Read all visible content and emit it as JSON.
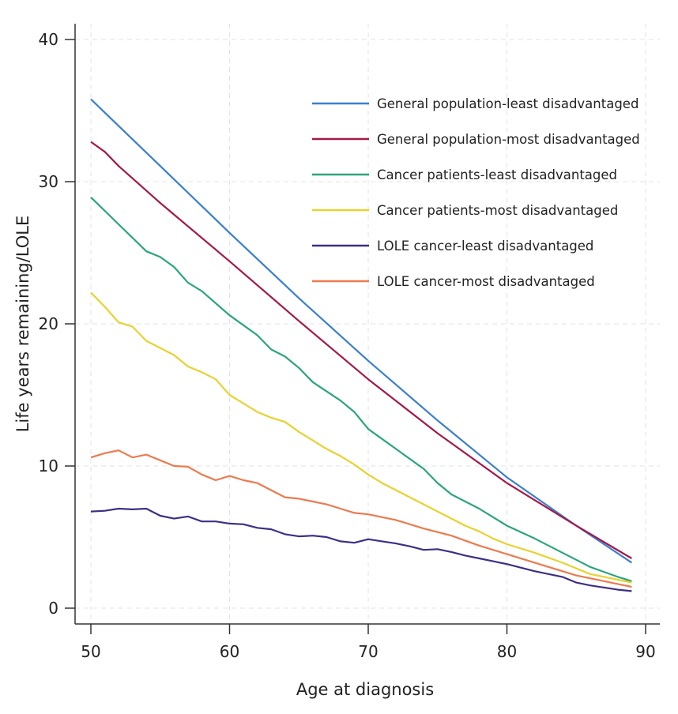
{
  "chart_data": {
    "type": "line",
    "title": "",
    "xlabel": "Age at diagnosis",
    "ylabel": "Life years remaining/LOLE",
    "xlim": [
      50,
      90
    ],
    "ylim": [
      0,
      40
    ],
    "xticks": [
      50,
      60,
      70,
      80,
      90
    ],
    "yticks": [
      0,
      10,
      20,
      30,
      40
    ],
    "grid": true,
    "legend_position": "top-right",
    "series": [
      {
        "name": "General population-least disadvantaged",
        "color": "#3a7fcf",
        "x": [
          50,
          55,
          60,
          65,
          70,
          75,
          80,
          85,
          89
        ],
        "y": [
          35.8,
          31.1,
          26.4,
          21.8,
          17.4,
          13.2,
          9.2,
          5.8,
          3.2
        ]
      },
      {
        "name": "General population-most disadvantaged",
        "color": "#a3194a",
        "x": [
          50,
          51,
          52,
          55,
          60,
          65,
          70,
          75,
          80,
          85,
          89
        ],
        "y": [
          32.8,
          32.1,
          31.1,
          28.5,
          24.4,
          20.2,
          16.1,
          12.3,
          8.8,
          5.8,
          3.5
        ]
      },
      {
        "name": "Cancer patients-least disadvantaged",
        "color": "#2aa57a",
        "x": [
          50,
          52,
          54,
          55,
          56,
          57,
          58,
          60,
          62,
          63,
          64,
          65,
          66,
          68,
          69,
          70,
          72,
          74,
          75,
          76,
          78,
          80,
          82,
          84,
          85,
          86,
          88,
          89
        ],
        "y": [
          28.9,
          27,
          25.1,
          24.7,
          24,
          22.9,
          22.3,
          20.6,
          19.2,
          18.2,
          17.7,
          16.9,
          15.9,
          14.6,
          13.8,
          12.6,
          11.2,
          9.8,
          8.8,
          8.0,
          7.0,
          5.8,
          4.9,
          3.9,
          3.4,
          2.9,
          2.2,
          1.9
        ]
      },
      {
        "name": "Cancer patients-most disadvantaged",
        "color": "#e8d230",
        "x": [
          50,
          51,
          52,
          53,
          54,
          55,
          56,
          57,
          58,
          59,
          60,
          61,
          62,
          63,
          64,
          65,
          66,
          67,
          68,
          69,
          70,
          71,
          72,
          73,
          74,
          75,
          76,
          77,
          78,
          79,
          80,
          82,
          84,
          85,
          86,
          88,
          89
        ],
        "y": [
          22.2,
          21.2,
          20.1,
          19.8,
          18.8,
          18.3,
          17.8,
          17.0,
          16.6,
          16.1,
          15.0,
          14.4,
          13.8,
          13.4,
          13.1,
          12.4,
          11.8,
          11.2,
          10.7,
          10.1,
          9.4,
          8.8,
          8.3,
          7.8,
          7.3,
          6.8,
          6.3,
          5.8,
          5.4,
          4.9,
          4.5,
          3.9,
          3.2,
          2.8,
          2.4,
          2.0,
          1.8
        ]
      },
      {
        "name": "LOLE cancer-least disadvantaged",
        "color": "#3d2f86",
        "x": [
          50,
          51,
          52,
          53,
          54,
          55,
          56,
          57,
          58,
          59,
          60,
          61,
          62,
          63,
          64,
          65,
          66,
          67,
          68,
          69,
          70,
          71,
          72,
          73,
          74,
          75,
          76,
          77,
          78,
          79,
          80,
          82,
          84,
          85,
          86,
          88,
          89
        ],
        "y": [
          6.8,
          6.85,
          7.0,
          6.95,
          7.0,
          6.5,
          6.3,
          6.45,
          6.1,
          6.1,
          5.95,
          5.9,
          5.65,
          5.55,
          5.2,
          5.05,
          5.1,
          5.0,
          4.7,
          4.6,
          4.85,
          4.7,
          4.55,
          4.35,
          4.1,
          4.15,
          3.95,
          3.7,
          3.5,
          3.3,
          3.1,
          2.6,
          2.2,
          1.8,
          1.6,
          1.3,
          1.2
        ]
      },
      {
        "name": "LOLE cancer-most disadvantaged",
        "color": "#ec7a4e",
        "x": [
          50,
          51,
          52,
          53,
          54,
          55,
          56,
          57,
          58,
          59,
          60,
          61,
          62,
          63,
          64,
          65,
          66,
          67,
          68,
          69,
          70,
          72,
          74,
          76,
          78,
          80,
          82,
          84,
          85,
          86,
          88,
          89
        ],
        "y": [
          10.6,
          10.9,
          11.1,
          10.6,
          10.8,
          10.4,
          10.0,
          9.95,
          9.4,
          9.0,
          9.3,
          9.0,
          8.8,
          8.3,
          7.8,
          7.7,
          7.5,
          7.3,
          7.0,
          6.7,
          6.6,
          6.2,
          5.6,
          5.1,
          4.4,
          3.8,
          3.2,
          2.6,
          2.3,
          2.1,
          1.7,
          1.5
        ]
      }
    ]
  }
}
